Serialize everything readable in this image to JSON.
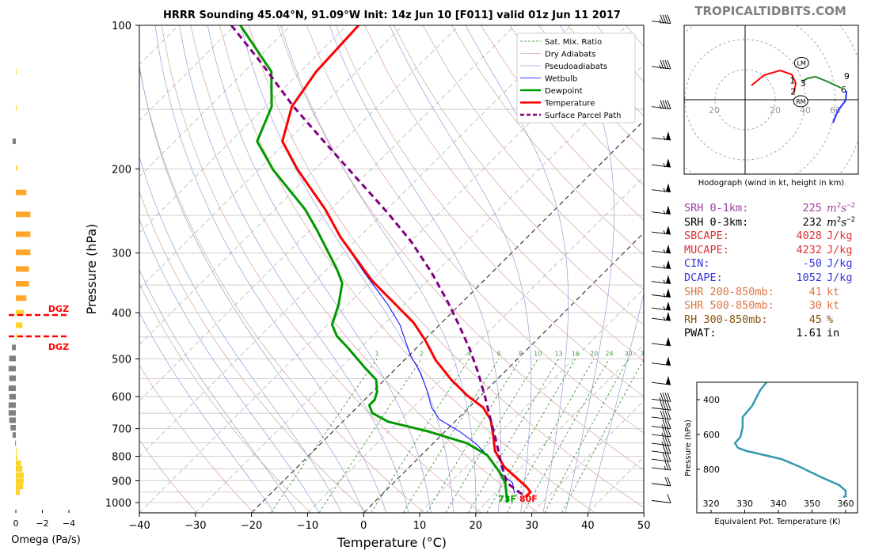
{
  "header": {
    "title": "HRRR Sounding 45.04°N, 91.09°W Init: 14z Jun 10 [F011] valid 01z Jun 11 2017",
    "watermark": "TROPICALTIDBITS.COM"
  },
  "chart_data": [
    {
      "type": "line",
      "name": "skew-t",
      "xlabel": "Temperature (°C)",
      "ylabel": "Pressure (hPa)",
      "xlim": [
        -40,
        50
      ],
      "ylim": [
        1050,
        100
      ],
      "x_ticks": [
        -40,
        -30,
        -20,
        -10,
        0,
        10,
        20,
        30,
        40,
        50
      ],
      "y_ticks": [
        100,
        200,
        300,
        400,
        500,
        600,
        700,
        800,
        900,
        1000
      ],
      "legend_position": "top-right",
      "legend": [
        {
          "label": "Sat. Mix. Ratio",
          "color": "#2e8b2e",
          "style": "dashed"
        },
        {
          "label": "Dry Adiabats",
          "color": "#d9a0a0",
          "style": "solid"
        },
        {
          "label": "Pseudoadiabats",
          "color": "#9a9ad8",
          "style": "solid"
        },
        {
          "label": "Wetbulb",
          "color": "#0000ff",
          "style": "solid"
        },
        {
          "label": "Dewpoint",
          "color": "#009900",
          "style": "solid"
        },
        {
          "label": "Temperature",
          "color": "#ff0000",
          "style": "solid"
        },
        {
          "label": "Surface Parcel Path",
          "color": "#800080",
          "style": "dashed"
        }
      ],
      "mixing_ratio_labels": [
        "1",
        "2",
        "4",
        "6",
        "8",
        "10",
        "13",
        "16",
        "20",
        "24",
        "30",
        "36"
      ],
      "surface_labels": {
        "dewpoint": "73F",
        "temperature": "80F"
      },
      "series": {
        "temperature": {
          "p": [
            100,
            125,
            148,
            175,
            201,
            243,
            278,
            343,
            385,
            420,
            457,
            503,
            553,
            597,
            632,
            670,
            718,
            780,
            842,
            875,
            927,
            951,
            973
          ],
          "t": [
            -87.9,
            -87.2,
            -85.3,
            -80.8,
            -72.9,
            -61,
            -53.3,
            -39.9,
            -31.4,
            -25,
            -19.8,
            -14.4,
            -8.1,
            -2.4,
            2.5,
            6,
            9,
            12.4,
            16.9,
            19.9,
            24.4,
            26.1,
            26
          ]
        },
        "dewpoint": {
          "p": [
            100,
            125,
            148,
            175,
            201,
            243,
            268,
            324,
            347,
            385,
            424,
            448,
            475,
            523,
            553,
            586,
            609,
            625,
            649,
            677,
            709,
            751,
            795,
            858,
            909,
            1000
          ],
          "t": [
            -109,
            -95.2,
            -88.9,
            -85.3,
            -77.3,
            -64.6,
            -58.9,
            -48.3,
            -44.8,
            -41.6,
            -39.2,
            -36.3,
            -32.1,
            -25.5,
            -21.5,
            -19.2,
            -18.2,
            -18.2,
            -16.3,
            -11.9,
            -3.1,
            6,
            11.7,
            16.6,
            19.9,
            23.8
          ]
        },
        "wetbulb": {
          "p": [
            278,
            330,
            385,
            424,
            492,
            532,
            586,
            632,
            670,
            709,
            751,
            795,
            842,
            875,
            909,
            956
          ],
          "t": [
            -53.3,
            -42.7,
            -32.8,
            -27.1,
            -19.7,
            -15.1,
            -10.2,
            -6.7,
            -3.1,
            2.5,
            7.5,
            11.7,
            15.2,
            18,
            21.2,
            23.4
          ]
        },
        "parcel": {
          "p": [
            100,
            120,
            148,
            176,
            209,
            248,
            284,
            330,
            378,
            424,
            475,
            532,
            597,
            670,
            751,
            842,
            909,
            951,
            968
          ],
          "t": [
            -110.6,
            -98.5,
            -85,
            -73,
            -61,
            -49,
            -39.9,
            -30.7,
            -22.9,
            -16.6,
            -10.5,
            -4.8,
            0.7,
            6,
            11.3,
            16.5,
            20.2,
            24,
            25.8
          ]
        }
      },
      "wind_barbs": [
        {
          "p": 98,
          "kt": 45
        },
        {
          "p": 122,
          "kt": 45
        },
        {
          "p": 148,
          "kt": 45
        },
        {
          "p": 172,
          "kt": 55
        },
        {
          "p": 196,
          "kt": 55
        },
        {
          "p": 221,
          "kt": 55
        },
        {
          "p": 246,
          "kt": 55
        },
        {
          "p": 271,
          "kt": 55
        },
        {
          "p": 297,
          "kt": 55
        },
        {
          "p": 320,
          "kt": 55
        },
        {
          "p": 344,
          "kt": 55
        },
        {
          "p": 367,
          "kt": 55
        },
        {
          "p": 391,
          "kt": 55
        },
        {
          "p": 411,
          "kt": 55
        },
        {
          "p": 464,
          "kt": 50
        },
        {
          "p": 510,
          "kt": 50
        },
        {
          "p": 560,
          "kt": 50
        },
        {
          "p": 607,
          "kt": 45
        },
        {
          "p": 633,
          "kt": 40
        },
        {
          "p": 662,
          "kt": 40
        },
        {
          "p": 692,
          "kt": 35
        },
        {
          "p": 720,
          "kt": 35
        },
        {
          "p": 751,
          "kt": 35
        },
        {
          "p": 780,
          "kt": 30
        },
        {
          "p": 811,
          "kt": 30
        },
        {
          "p": 845,
          "kt": 25
        },
        {
          "p": 912,
          "kt": 20
        },
        {
          "p": 990,
          "kt": 10
        }
      ]
    },
    {
      "type": "bar",
      "name": "omega",
      "xlabel": "Omega (Pa/s)",
      "x_ticks": [
        "0",
        "−2",
        "−4"
      ],
      "xlim": [
        0.6,
        -4
      ],
      "dgz_label": "DGZ",
      "dgz_bounds_hpa": [
        400,
        448
      ],
      "p": [
        125,
        149,
        175,
        199,
        224,
        249,
        274,
        299,
        324,
        348,
        373,
        400,
        425,
        448,
        473,
        499,
        524,
        549,
        576,
        600,
        625,
        649,
        672,
        697,
        722,
        751,
        780,
        804,
        827,
        850,
        876,
        901,
        926,
        951
      ],
      "values": [
        -0.05,
        -0.05,
        0.25,
        -0.1,
        -0.8,
        -1.1,
        -1.1,
        -1.1,
        -1.0,
        -1.0,
        -0.8,
        -0.6,
        -0.5,
        -0.05,
        0.3,
        0.5,
        0.55,
        0.5,
        0.55,
        0.5,
        0.55,
        0.55,
        0.5,
        0.4,
        0.25,
        0.05,
        -0.05,
        -0.1,
        -0.4,
        -0.5,
        -0.6,
        -0.6,
        -0.55,
        -0.3
      ]
    },
    {
      "type": "line",
      "name": "hodograph",
      "caption": "Hodograph (wind in kt, height in km)",
      "ring_labels": [
        "20",
        "20",
        "40",
        "60"
      ],
      "segments": [
        {
          "color": "#ff0000",
          "u": [
            4.2,
            12.6,
            23.2,
            31,
            33.7,
            33.2
          ],
          "v": [
            9.5,
            16.3,
            19.5,
            16.8,
            11.1,
            8.4
          ]
        },
        {
          "color": "#ff0000",
          "u": [
            33.2,
            32.4
          ],
          "v": [
            8.4,
            4.5
          ]
        },
        {
          "color": "#228b22",
          "u": [
            37.4,
            41.6,
            46.8,
            54.7,
            63.7
          ],
          "v": [
            12.1,
            14.2,
            15.3,
            12.1,
            7.9
          ]
        },
        {
          "color": "#2233ff",
          "u": [
            67.4,
            66.8,
            61.6,
            58.4
          ],
          "v": [
            5.8,
            -0.5,
            -7.4,
            -15.3
          ]
        }
      ],
      "height_labels": [
        {
          "t": "1",
          "u": 33,
          "v": 13
        },
        {
          "t": "2",
          "u": 32,
          "v": 5.5
        },
        {
          "t": "3",
          "u": 37,
          "v": 11
        },
        {
          "t": "6",
          "u": 66,
          "v": 8
        },
        {
          "t": "9",
          "u": 66.5,
          "v": 11
        }
      ],
      "storm_motion": [
        {
          "t": "LM",
          "u": 37.5,
          "v": 24.5
        },
        {
          "t": "RM",
          "u": 37,
          "v": -1
        }
      ]
    },
    {
      "type": "line",
      "name": "theta-e",
      "xlabel": "Equivalent Pot. Temperature (K)",
      "ylabel": "Pressure (hPa)",
      "x_ticks": [
        320,
        330,
        340,
        350,
        360
      ],
      "y_ticks": [
        400,
        600,
        800
      ],
      "xlim": [
        317.5,
        365
      ],
      "ylim": [
        1050,
        300
      ],
      "color": "#3399b3",
      "theta_e": [
        336.5,
        334.6,
        332.2,
        329.4,
        329.4,
        328.7,
        327.1,
        328,
        330.6,
        340.9,
        346.4,
        352.7,
        358.1,
        360,
        360,
        359.3
      ],
      "p": [
        300,
        345,
        436,
        500,
        559,
        614,
        650,
        677,
        695,
        741,
        786,
        845,
        891,
        923,
        955,
        959
      ]
    }
  ],
  "stats": [
    {
      "label": "SRH 0-1km:",
      "value": "225",
      "unit": "m",
      "sup": "2",
      "unit2": "s",
      "sup2": "−2",
      "color": "#a040a0"
    },
    {
      "label": "SRH 0-3km:",
      "value": "232",
      "unit": "m",
      "sup": "2",
      "unit2": "s",
      "sup2": "−2",
      "color": "#000000"
    },
    {
      "label": "SBCAPE:",
      "value": "4028",
      "unit": "J/kg",
      "color": "#dd3333"
    },
    {
      "label": "MUCAPE:",
      "value": "4232",
      "unit": "J/kg",
      "color": "#dd3333"
    },
    {
      "label": "CIN:",
      "value": "-50",
      "unit": "J/kg",
      "color": "#3333dd"
    },
    {
      "label": "DCAPE:",
      "value": "1052",
      "unit": "J/kg",
      "color": "#3333dd"
    },
    {
      "label": "SHR 200-850mb:",
      "value": "41",
      "unit": "kt",
      "color": "#dd7744"
    },
    {
      "label": "SHR 500-850mb:",
      "value": "30",
      "unit": "kt",
      "color": "#dd7744"
    },
    {
      "label": "RH 300-850mb:",
      "value": "45",
      "unit": "%",
      "color": "#885511"
    },
    {
      "label": "PWAT:",
      "value": "1.61",
      "unit": "in",
      "color": "#000000"
    }
  ]
}
